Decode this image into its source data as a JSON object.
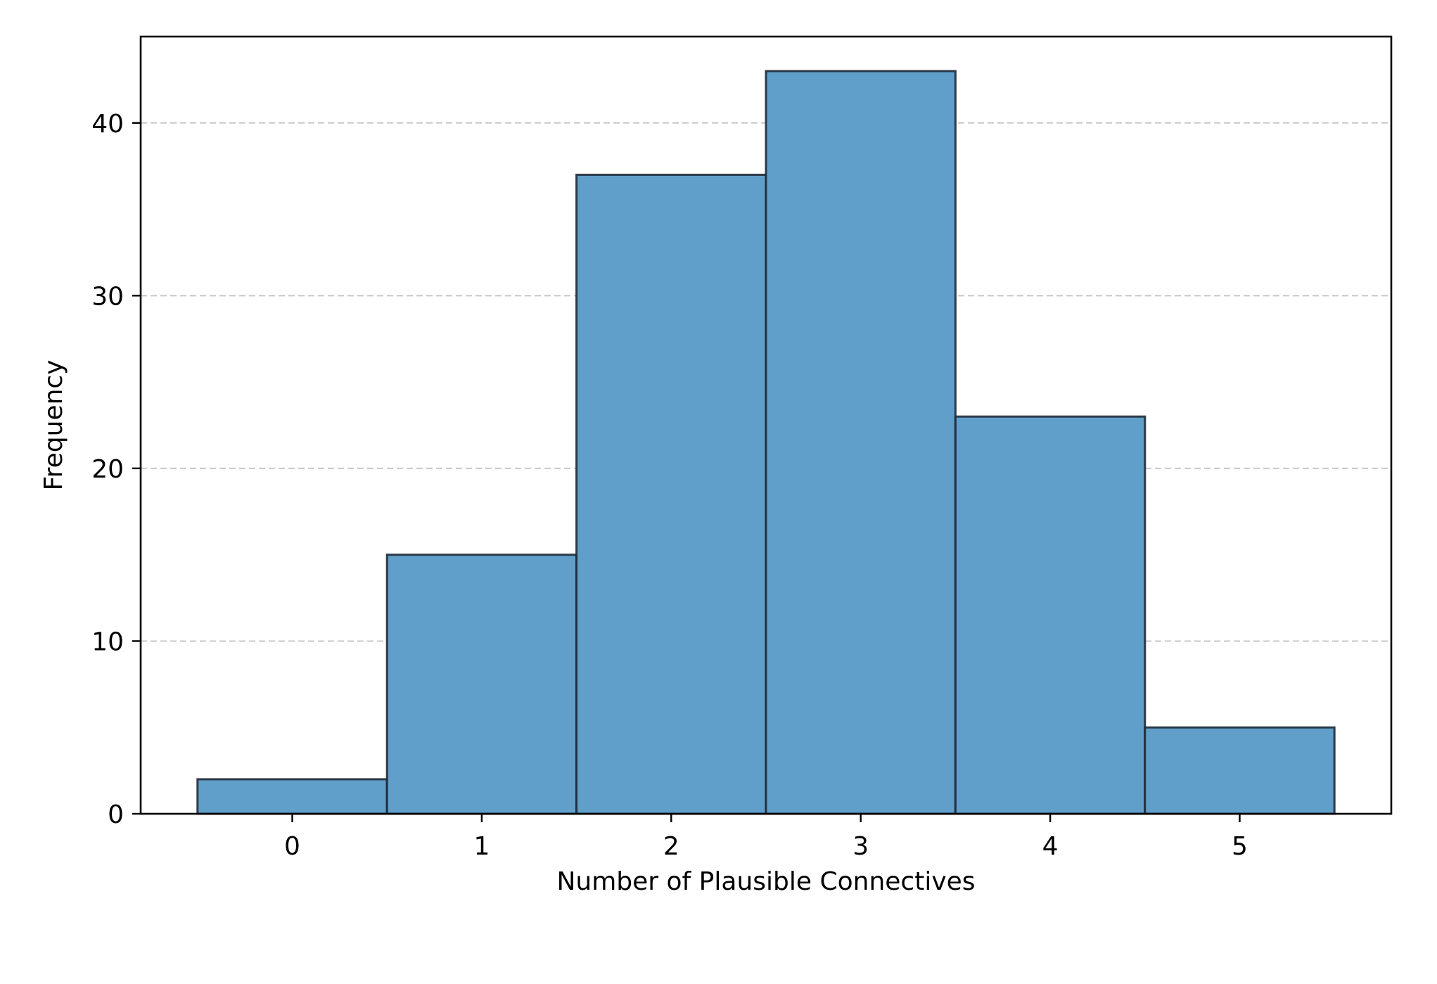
{
  "chart_data": {
    "type": "bar",
    "title": "",
    "xlabel": "Number of Plausible Connectives",
    "ylabel": "Frequency",
    "categories": [
      "0",
      "1",
      "2",
      "3",
      "4",
      "5"
    ],
    "x": [
      0,
      1,
      2,
      3,
      4,
      5
    ],
    "values": [
      2,
      15,
      37,
      43,
      23,
      5
    ],
    "xlim": [
      -0.8,
      5.8
    ],
    "ylim": [
      0,
      45
    ],
    "yticks": [
      0,
      10,
      20,
      30,
      40
    ],
    "ytick_labels": [
      "0",
      "10",
      "20",
      "30",
      "40"
    ],
    "grid": "y-dashed",
    "bar_width": 1.0,
    "colors": {
      "bar_fill": "#619fcb",
      "bar_edge": "#1f2a36",
      "grid": "#c8c8c8",
      "axes": "#000000"
    }
  }
}
